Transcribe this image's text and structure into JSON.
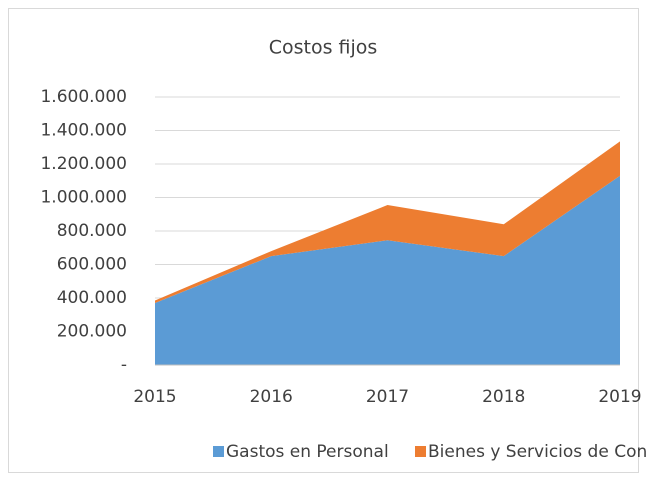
{
  "chart_data": {
    "type": "stacked_area",
    "title": "Costos fijos",
    "categories": [
      "2015",
      "2016",
      "2017",
      "2018",
      "2019"
    ],
    "series": [
      {
        "name": "Gastos en Personal",
        "color": "#5b9bd5",
        "values": [
          370000,
          650000,
          745000,
          650000,
          1130000
        ]
      },
      {
        "name": "Bienes y Servicios de Consumo",
        "color": "#ed7d31",
        "values": [
          15000,
          30000,
          210000,
          190000,
          205000
        ]
      }
    ],
    "ylim": [
      0,
      1600000
    ],
    "yticks": [
      {
        "value": 0,
        "label": "-"
      },
      {
        "value": 200000,
        "label": "200.000"
      },
      {
        "value": 400000,
        "label": "400.000"
      },
      {
        "value": 600000,
        "label": "600.000"
      },
      {
        "value": 800000,
        "label": "800.000"
      },
      {
        "value": 1000000,
        "label": "1.000.000"
      },
      {
        "value": 1200000,
        "label": "1.200.000"
      },
      {
        "value": 1400000,
        "label": "1.400.000"
      },
      {
        "value": 1600000,
        "label": "1.600.000"
      }
    ],
    "grid": true,
    "legend": "bottom"
  }
}
